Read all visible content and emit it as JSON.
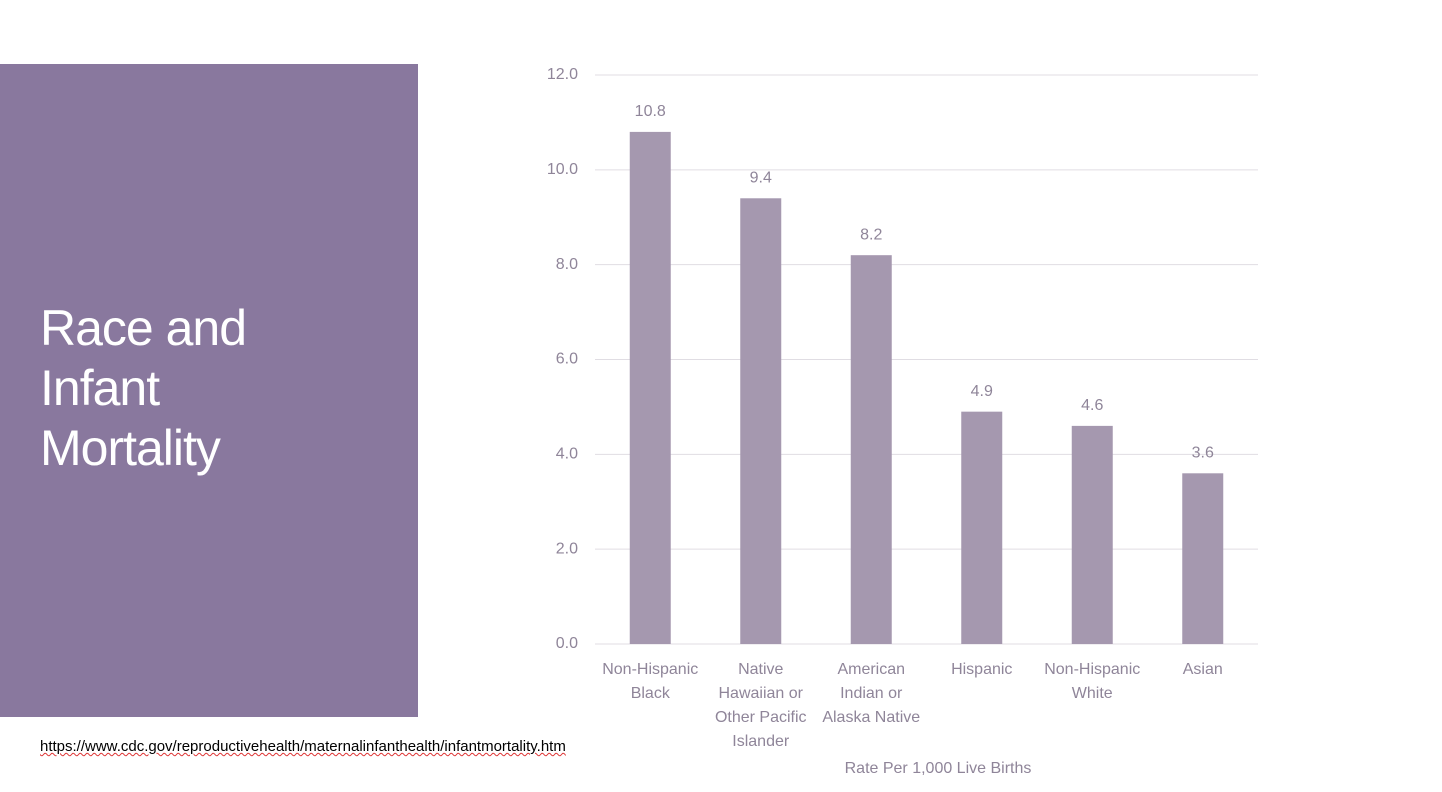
{
  "slide_title": "Race and Infant Mortality",
  "source": "https://www.cdc.gov/reproductivehealth/maternalinfanthealth/infantmortality.htm",
  "chart_data": {
    "type": "bar",
    "x_label": "Rate Per 1,000 Live Births",
    "categories": [
      "Non-Hispanic Black",
      "Native Hawaiian or Other Pacific Islander",
      "American Indian or Alaska Native",
      "Hispanic",
      "Non-Hispanic White",
      "Asian"
    ],
    "values": [
      10.8,
      9.4,
      8.2,
      4.9,
      4.6,
      3.6
    ],
    "color": "#a598af",
    "ylim": [
      0,
      12
    ],
    "yticks": [
      {
        "value": 0,
        "label": "0.0"
      },
      {
        "value": 2,
        "label": "2.0"
      },
      {
        "value": 4,
        "label": "4.0"
      },
      {
        "value": 6,
        "label": "6.0"
      },
      {
        "value": 8,
        "label": "8.0"
      },
      {
        "value": 10,
        "label": "10.0"
      },
      {
        "value": 12,
        "label": "12.0"
      }
    ],
    "grid": true
  }
}
